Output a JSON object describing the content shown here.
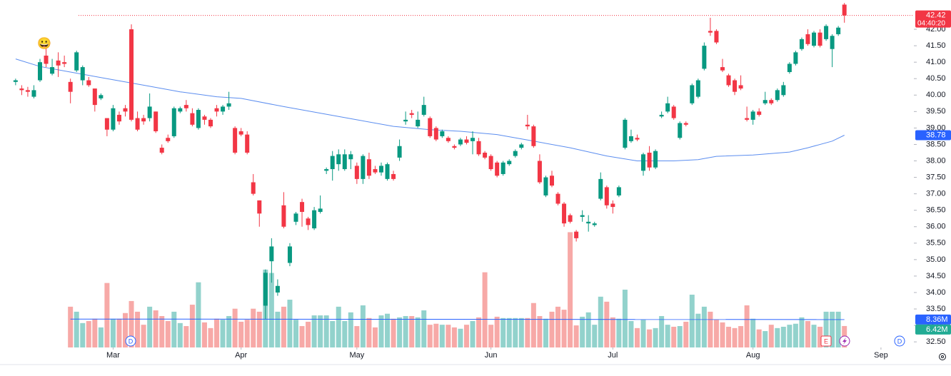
{
  "chart_data": {
    "type": "candlestick",
    "xlim": [
      -0.1,
      147.4
    ],
    "xticks": [
      {
        "value": 16,
        "label": "Mar"
      },
      {
        "value": 37,
        "label": "Apr"
      },
      {
        "value": 56,
        "label": "May"
      },
      {
        "value": 78,
        "label": "Jun"
      },
      {
        "value": 98,
        "label": "Jul"
      },
      {
        "value": 121,
        "label": "Aug"
      },
      {
        "value": 142,
        "label": "Sep"
      }
    ],
    "ylim": [
      32.33,
      42.89
    ],
    "yticks": [
      {
        "value": 42,
        "label": "42.00"
      },
      {
        "value": 41.5,
        "label": "41.50"
      },
      {
        "value": 41,
        "label": "41.00"
      },
      {
        "value": 40.5,
        "label": "40.50"
      },
      {
        "value": 40,
        "label": "40.00"
      },
      {
        "value": 39.5,
        "label": "39.50"
      },
      {
        "value": 39,
        "label": "39.00"
      },
      {
        "value": 38.5,
        "label": "38.50"
      },
      {
        "value": 38,
        "label": "38.00"
      },
      {
        "value": 37.5,
        "label": "37.50"
      },
      {
        "value": 37,
        "label": "37.00"
      },
      {
        "value": 36.5,
        "label": "36.50"
      },
      {
        "value": 36,
        "label": "36.00"
      },
      {
        "value": 35.5,
        "label": "35.50"
      },
      {
        "value": 35,
        "label": "35.00"
      },
      {
        "value": 34.5,
        "label": "34.50"
      },
      {
        "value": 34,
        "label": "34.00"
      },
      {
        "value": 33.5,
        "label": "33.50"
      },
      {
        "value": 33,
        "label": "33.00"
      },
      {
        "value": 32.5,
        "label": "32.50"
      }
    ],
    "y2lim": [
      0,
      104
    ],
    "up_color": "#089981",
    "down_color": "#f23645",
    "volume_up_color": "#92d2cc",
    "volume_down_color": "#f7a9a7",
    "ohlc": [
      [
        40.4,
        40.5,
        40.3,
        40.45
      ],
      [
        40.2,
        40.3,
        40.0,
        40.15
      ],
      [
        40.15,
        40.25,
        39.95,
        40.1
      ],
      [
        39.95,
        40.3,
        39.9,
        40.15
      ],
      [
        40.45,
        41.1,
        40.4,
        41.0
      ],
      [
        41.2,
        41.5,
        40.85,
        40.95
      ],
      [
        40.65,
        41.1,
        40.6,
        40.85
      ],
      [
        41.05,
        41.3,
        40.55,
        40.9
      ],
      [
        41.0,
        41.2,
        40.85,
        40.95
      ],
      [
        40.4,
        40.5,
        39.75,
        40.1
      ],
      [
        40.75,
        41.35,
        40.7,
        41.3
      ],
      [
        40.45,
        40.9,
        40.3,
        40.85
      ],
      [
        40.45,
        40.55,
        40.25,
        40.3
      ],
      [
        40.2,
        40.2,
        39.5,
        39.7
      ],
      [
        39.9,
        40.05,
        39.85,
        40.0
      ],
      [
        39.3,
        39.3,
        38.75,
        38.95
      ],
      [
        38.95,
        39.7,
        38.9,
        39.6
      ],
      [
        39.4,
        39.5,
        39.1,
        39.2
      ],
      [
        39.6,
        39.7,
        39.35,
        39.5
      ],
      [
        42.0,
        42.15,
        39.2,
        39.25
      ],
      [
        39.3,
        39.5,
        38.9,
        38.95
      ],
      [
        39.3,
        39.4,
        39.1,
        39.2
      ],
      [
        39.3,
        40.05,
        39.2,
        39.65
      ],
      [
        39.5,
        39.5,
        38.85,
        38.9
      ],
      [
        38.4,
        38.5,
        38.2,
        38.25
      ],
      [
        38.7,
        38.8,
        38.55,
        38.6
      ],
      [
        38.75,
        39.65,
        38.7,
        39.6
      ],
      [
        39.5,
        39.65,
        39.45,
        39.6
      ],
      [
        39.7,
        39.85,
        39.5,
        39.6
      ],
      [
        39.45,
        39.6,
        39.05,
        39.1
      ],
      [
        39.0,
        39.6,
        38.95,
        39.55
      ],
      [
        39.35,
        39.4,
        39.1,
        39.25
      ],
      [
        39.25,
        39.3,
        39.0,
        39.05
      ],
      [
        39.6,
        39.7,
        39.35,
        39.5
      ],
      [
        39.5,
        39.7,
        39.4,
        39.65
      ],
      [
        39.65,
        40.1,
        39.55,
        39.75
      ],
      [
        39.0,
        39.05,
        38.2,
        38.25
      ],
      [
        38.9,
        39.0,
        38.75,
        38.8
      ],
      [
        38.8,
        38.9,
        38.2,
        38.25
      ],
      [
        37.35,
        37.6,
        36.95,
        37.0
      ],
      [
        36.8,
        36.8,
        36.0,
        36.4
      ],
      [
        33.6,
        34.7,
        33.2,
        34.6
      ],
      [
        34.95,
        35.65,
        34.3,
        35.4
      ],
      [
        34.0,
        34.4,
        33.9,
        34.2
      ],
      [
        36.65,
        37.05,
        35.95,
        36.0
      ],
      [
        34.9,
        35.5,
        34.8,
        35.4
      ],
      [
        36.15,
        36.45,
        36.05,
        36.4
      ],
      [
        36.75,
        36.85,
        36.0,
        36.45
      ],
      [
        36.25,
        36.3,
        35.9,
        36.05
      ],
      [
        35.95,
        36.6,
        35.9,
        36.5
      ],
      [
        36.45,
        36.95,
        36.4,
        36.55
      ],
      [
        37.7,
        37.8,
        37.6,
        37.75
      ],
      [
        37.75,
        38.3,
        37.4,
        38.15
      ],
      [
        37.9,
        38.35,
        37.7,
        38.2
      ],
      [
        37.75,
        38.35,
        37.7,
        38.2
      ],
      [
        38.05,
        38.3,
        37.75,
        38.2
      ],
      [
        37.85,
        37.95,
        37.3,
        37.45
      ],
      [
        37.45,
        38.2,
        37.3,
        38.15
      ],
      [
        38.05,
        38.25,
        37.45,
        37.55
      ],
      [
        37.75,
        37.85,
        37.6,
        37.65
      ],
      [
        37.65,
        37.95,
        37.55,
        37.85
      ],
      [
        37.45,
        37.95,
        37.4,
        37.9
      ],
      [
        37.6,
        37.7,
        37.4,
        37.45
      ],
      [
        38.1,
        38.65,
        38.0,
        38.45
      ],
      [
        39.2,
        39.5,
        39.1,
        39.25
      ],
      [
        39.45,
        39.55,
        39.3,
        39.4
      ],
      [
        39.05,
        39.5,
        39.0,
        39.25
      ],
      [
        39.4,
        39.95,
        39.35,
        39.7
      ],
      [
        39.3,
        39.35,
        38.7,
        38.75
      ],
      [
        39.0,
        39.05,
        38.6,
        38.65
      ],
      [
        38.75,
        38.95,
        38.7,
        38.9
      ],
      [
        38.7,
        38.75,
        38.55,
        38.6
      ],
      [
        38.45,
        38.5,
        38.35,
        38.4
      ],
      [
        38.5,
        38.7,
        38.45,
        38.65
      ],
      [
        38.65,
        38.75,
        38.5,
        38.55
      ],
      [
        38.6,
        38.9,
        38.2,
        38.7
      ],
      [
        38.6,
        38.7,
        38.15,
        38.2
      ],
      [
        38.25,
        38.3,
        38.05,
        38.1
      ],
      [
        38.15,
        38.2,
        37.7,
        37.75
      ],
      [
        37.95,
        38.0,
        37.5,
        37.55
      ],
      [
        37.6,
        38.0,
        37.55,
        37.95
      ],
      [
        37.9,
        38.05,
        37.85,
        38.0
      ],
      [
        38.15,
        38.35,
        38.1,
        38.3
      ],
      [
        38.4,
        38.55,
        38.35,
        38.5
      ],
      [
        39.1,
        39.4,
        38.95,
        39.05
      ],
      [
        39.05,
        39.1,
        38.4,
        38.45
      ],
      [
        38.0,
        38.2,
        37.3,
        37.35
      ],
      [
        36.95,
        37.55,
        36.9,
        37.5
      ],
      [
        37.55,
        37.7,
        37.2,
        37.25
      ],
      [
        37.0,
        37.05,
        36.65,
        36.7
      ],
      [
        36.7,
        36.75,
        36.0,
        36.1
      ],
      [
        36.35,
        36.4,
        36.1,
        36.15
      ],
      [
        35.85,
        35.9,
        35.55,
        35.65
      ],
      [
        36.3,
        36.5,
        36.15,
        36.35
      ],
      [
        36.1,
        36.35,
        35.85,
        36.15
      ],
      [
        36.05,
        36.15,
        36.0,
        36.1
      ],
      [
        36.85,
        37.65,
        36.8,
        37.45
      ],
      [
        37.2,
        37.25,
        36.55,
        36.65
      ],
      [
        36.7,
        36.8,
        36.4,
        36.6
      ],
      [
        36.95,
        37.25,
        36.9,
        37.2
      ],
      [
        38.4,
        39.3,
        38.35,
        39.25
      ],
      [
        38.6,
        38.95,
        38.55,
        38.75
      ],
      [
        38.7,
        38.8,
        38.6,
        38.65
      ],
      [
        37.7,
        38.25,
        37.55,
        38.2
      ],
      [
        38.25,
        38.45,
        37.7,
        37.8
      ],
      [
        37.8,
        38.35,
        37.75,
        38.3
      ],
      [
        39.35,
        39.5,
        39.3,
        39.4
      ],
      [
        39.5,
        39.95,
        39.45,
        39.75
      ],
      [
        39.65,
        39.7,
        39.25,
        39.3
      ],
      [
        38.7,
        39.2,
        38.65,
        39.15
      ],
      [
        39.15,
        39.2,
        39.05,
        39.1
      ],
      [
        39.75,
        40.35,
        39.7,
        40.3
      ],
      [
        39.95,
        40.5,
        39.9,
        40.45
      ],
      [
        40.8,
        41.6,
        40.75,
        41.5
      ],
      [
        41.95,
        42.35,
        41.8,
        41.9
      ],
      [
        41.95,
        42.0,
        41.55,
        41.6
      ],
      [
        40.85,
        41.1,
        40.7,
        40.75
      ],
      [
        40.6,
        40.65,
        40.25,
        40.3
      ],
      [
        40.45,
        40.5,
        40.0,
        40.1
      ],
      [
        40.3,
        40.6,
        40.15,
        40.2
      ],
      [
        39.3,
        39.65,
        39.2,
        39.25
      ],
      [
        39.25,
        39.55,
        39.1,
        39.5
      ],
      [
        39.5,
        39.6,
        39.35,
        39.4
      ],
      [
        39.75,
        40.1,
        39.7,
        39.85
      ],
      [
        39.85,
        39.9,
        39.7,
        39.75
      ],
      [
        39.85,
        40.2,
        39.8,
        40.15
      ],
      [
        40.0,
        40.4,
        39.95,
        40.3
      ],
      [
        40.7,
        41.0,
        40.65,
        40.95
      ],
      [
        40.95,
        41.35,
        40.9,
        41.3
      ],
      [
        41.4,
        41.75,
        41.35,
        41.7
      ],
      [
        41.85,
        42.0,
        41.5,
        41.55
      ],
      [
        41.5,
        41.95,
        41.45,
        41.9
      ],
      [
        41.9,
        42.0,
        41.45,
        41.5
      ],
      [
        41.7,
        42.15,
        41.65,
        42.1
      ],
      [
        41.4,
        41.85,
        40.85,
        41.8
      ],
      [
        41.85,
        42.1,
        41.8,
        42.05
      ],
      [
        42.75,
        42.8,
        42.2,
        42.42
      ]
    ],
    "volume": [
      null,
      null,
      null,
      null,
      null,
      null,
      null,
      null,
      null,
      12.2,
      10.7,
      7.3,
      7.9,
      8.6,
      6.0,
      19.3,
      8.6,
      8.6,
      10.3,
      13.9,
      10.7,
      6.8,
      12.2,
      11.1,
      9.4,
      7.9,
      10.7,
      7.3,
      6.4,
      12.8,
      19.5,
      7.5,
      5.8,
      8.6,
      8.3,
      9.4,
      11.6,
      7.7,
      8.3,
      11.6,
      10.7,
      23.3,
      22.3,
      10.7,
      12.2,
      14.3,
      8.3,
      6.4,
      7.7,
      9.6,
      9.6,
      9.6,
      7.9,
      12.2,
      7.9,
      10.5,
      6.4,
      12.6,
      8.8,
      6.0,
      9.6,
      10.1,
      8.6,
      9.0,
      9.4,
      9.4,
      9.0,
      11.1,
      6.8,
      7.1,
      6.8,
      6.8,
      6.0,
      5.6,
      6.8,
      7.9,
      9.0,
      22.5,
      6.8,
      9.2,
      8.8,
      8.8,
      8.8,
      8.8,
      8.8,
      13.3,
      9.4,
      8.6,
      10.7,
      12.2,
      11.3,
      34.5,
      6.6,
      9.2,
      10.5,
      6.8,
      15.2,
      13.7,
      9.0,
      8.6,
      17.3,
      7.9,
      5.8,
      8.3,
      5.4,
      5.8,
      9.4,
      6.8,
      6.2,
      6.4,
      7.7,
      15.8,
      10.1,
      12.2,
      10.7,
      8.3,
      7.5,
      6.2,
      5.8,
      6.4,
      12.6,
      8.6,
      5.4,
      4.9,
      6.8,
      5.8,
      6.2,
      6.8,
      7.1,
      9.0,
      7.9,
      6.8,
      6.2,
      10.7,
      10.7,
      10.7,
      6.42
    ],
    "moving_average": {
      "color": "#5b8def",
      "x": [
        0,
        4,
        9,
        15,
        21,
        27,
        33,
        37,
        44,
        50,
        56,
        62,
        68,
        73,
        79,
        85,
        91,
        97,
        102,
        108,
        112,
        115,
        121,
        127,
        130,
        134,
        136
      ],
      "values": [
        41.1,
        40.87,
        40.7,
        40.5,
        40.3,
        40.1,
        39.95,
        39.9,
        39.65,
        39.45,
        39.25,
        39.05,
        38.95,
        38.9,
        38.8,
        38.6,
        38.4,
        38.15,
        38.0,
        38.0,
        38.04,
        38.14,
        38.18,
        38.27,
        38.4,
        38.6,
        38.78
      ],
      "label": {
        "value": 38.78,
        "label": "38.78"
      }
    },
    "volume_average": {
      "color": "#2962ff",
      "x": [
        9,
        136
      ],
      "values": [
        8.5,
        8.36
      ],
      "label": {
        "value": 8.36,
        "label": "8.36M"
      }
    },
    "last_price": {
      "value": 42.42,
      "label": "42.42",
      "countdown": "04:40:20"
    },
    "last_volume": {
      "value": 6.42,
      "label": "6.42M"
    },
    "events": {
      "emoji": "😀",
      "dividend": "D",
      "earnings": "E"
    }
  }
}
